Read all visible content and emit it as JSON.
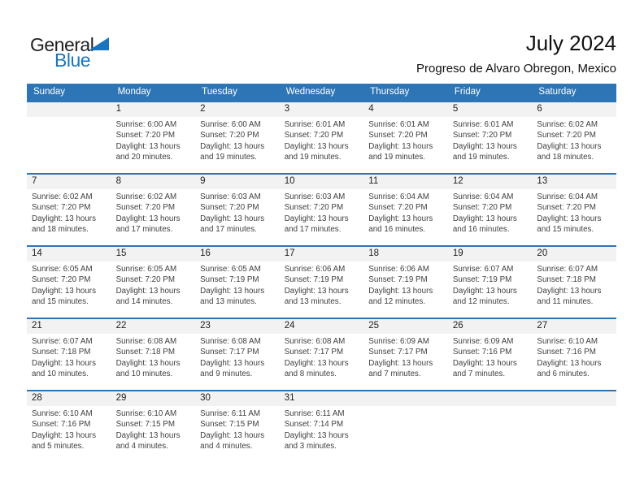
{
  "page": {
    "title": "July 2024",
    "subtitle": "Progreso de Alvaro Obregon, Mexico"
  },
  "logo": {
    "word1": "General",
    "word2": "Blue",
    "triangle_icon": "blue-right-triangle"
  },
  "colors": {
    "header_blue": "#2E75B6",
    "row_border_blue": "#2E74B5",
    "day_number_strip_gray": "#F2F2F2",
    "logo_blue": "#1B75BC",
    "logo_text_dark": "#1F1F1F",
    "detail_text": "#3F3F3F",
    "title_text": "#111111"
  },
  "calendar": {
    "weekday_headers": [
      "Sunday",
      "Monday",
      "Tuesday",
      "Wednesday",
      "Thursday",
      "Friday",
      "Saturday"
    ],
    "weeks": [
      [
        null,
        {
          "day": "1",
          "sunrise": "Sunrise: 6:00 AM",
          "sunset": "Sunset: 7:20 PM",
          "daylight1": "Daylight: 13 hours",
          "daylight2": "and 20 minutes."
        },
        {
          "day": "2",
          "sunrise": "Sunrise: 6:00 AM",
          "sunset": "Sunset: 7:20 PM",
          "daylight1": "Daylight: 13 hours",
          "daylight2": "and 19 minutes."
        },
        {
          "day": "3",
          "sunrise": "Sunrise: 6:01 AM",
          "sunset": "Sunset: 7:20 PM",
          "daylight1": "Daylight: 13 hours",
          "daylight2": "and 19 minutes."
        },
        {
          "day": "4",
          "sunrise": "Sunrise: 6:01 AM",
          "sunset": "Sunset: 7:20 PM",
          "daylight1": "Daylight: 13 hours",
          "daylight2": "and 19 minutes."
        },
        {
          "day": "5",
          "sunrise": "Sunrise: 6:01 AM",
          "sunset": "Sunset: 7:20 PM",
          "daylight1": "Daylight: 13 hours",
          "daylight2": "and 19 minutes."
        },
        {
          "day": "6",
          "sunrise": "Sunrise: 6:02 AM",
          "sunset": "Sunset: 7:20 PM",
          "daylight1": "Daylight: 13 hours",
          "daylight2": "and 18 minutes."
        }
      ],
      [
        {
          "day": "7",
          "sunrise": "Sunrise: 6:02 AM",
          "sunset": "Sunset: 7:20 PM",
          "daylight1": "Daylight: 13 hours",
          "daylight2": "and 18 minutes."
        },
        {
          "day": "8",
          "sunrise": "Sunrise: 6:02 AM",
          "sunset": "Sunset: 7:20 PM",
          "daylight1": "Daylight: 13 hours",
          "daylight2": "and 17 minutes."
        },
        {
          "day": "9",
          "sunrise": "Sunrise: 6:03 AM",
          "sunset": "Sunset: 7:20 PM",
          "daylight1": "Daylight: 13 hours",
          "daylight2": "and 17 minutes."
        },
        {
          "day": "10",
          "sunrise": "Sunrise: 6:03 AM",
          "sunset": "Sunset: 7:20 PM",
          "daylight1": "Daylight: 13 hours",
          "daylight2": "and 17 minutes."
        },
        {
          "day": "11",
          "sunrise": "Sunrise: 6:04 AM",
          "sunset": "Sunset: 7:20 PM",
          "daylight1": "Daylight: 13 hours",
          "daylight2": "and 16 minutes."
        },
        {
          "day": "12",
          "sunrise": "Sunrise: 6:04 AM",
          "sunset": "Sunset: 7:20 PM",
          "daylight1": "Daylight: 13 hours",
          "daylight2": "and 16 minutes."
        },
        {
          "day": "13",
          "sunrise": "Sunrise: 6:04 AM",
          "sunset": "Sunset: 7:20 PM",
          "daylight1": "Daylight: 13 hours",
          "daylight2": "and 15 minutes."
        }
      ],
      [
        {
          "day": "14",
          "sunrise": "Sunrise: 6:05 AM",
          "sunset": "Sunset: 7:20 PM",
          "daylight1": "Daylight: 13 hours",
          "daylight2": "and 15 minutes."
        },
        {
          "day": "15",
          "sunrise": "Sunrise: 6:05 AM",
          "sunset": "Sunset: 7:20 PM",
          "daylight1": "Daylight: 13 hours",
          "daylight2": "and 14 minutes."
        },
        {
          "day": "16",
          "sunrise": "Sunrise: 6:05 AM",
          "sunset": "Sunset: 7:19 PM",
          "daylight1": "Daylight: 13 hours",
          "daylight2": "and 13 minutes."
        },
        {
          "day": "17",
          "sunrise": "Sunrise: 6:06 AM",
          "sunset": "Sunset: 7:19 PM",
          "daylight1": "Daylight: 13 hours",
          "daylight2": "and 13 minutes."
        },
        {
          "day": "18",
          "sunrise": "Sunrise: 6:06 AM",
          "sunset": "Sunset: 7:19 PM",
          "daylight1": "Daylight: 13 hours",
          "daylight2": "and 12 minutes."
        },
        {
          "day": "19",
          "sunrise": "Sunrise: 6:07 AM",
          "sunset": "Sunset: 7:19 PM",
          "daylight1": "Daylight: 13 hours",
          "daylight2": "and 12 minutes."
        },
        {
          "day": "20",
          "sunrise": "Sunrise: 6:07 AM",
          "sunset": "Sunset: 7:18 PM",
          "daylight1": "Daylight: 13 hours",
          "daylight2": "and 11 minutes."
        }
      ],
      [
        {
          "day": "21",
          "sunrise": "Sunrise: 6:07 AM",
          "sunset": "Sunset: 7:18 PM",
          "daylight1": "Daylight: 13 hours",
          "daylight2": "and 10 minutes."
        },
        {
          "day": "22",
          "sunrise": "Sunrise: 6:08 AM",
          "sunset": "Sunset: 7:18 PM",
          "daylight1": "Daylight: 13 hours",
          "daylight2": "and 10 minutes."
        },
        {
          "day": "23",
          "sunrise": "Sunrise: 6:08 AM",
          "sunset": "Sunset: 7:17 PM",
          "daylight1": "Daylight: 13 hours",
          "daylight2": "and 9 minutes."
        },
        {
          "day": "24",
          "sunrise": "Sunrise: 6:08 AM",
          "sunset": "Sunset: 7:17 PM",
          "daylight1": "Daylight: 13 hours",
          "daylight2": "and 8 minutes."
        },
        {
          "day": "25",
          "sunrise": "Sunrise: 6:09 AM",
          "sunset": "Sunset: 7:17 PM",
          "daylight1": "Daylight: 13 hours",
          "daylight2": "and 7 minutes."
        },
        {
          "day": "26",
          "sunrise": "Sunrise: 6:09 AM",
          "sunset": "Sunset: 7:16 PM",
          "daylight1": "Daylight: 13 hours",
          "daylight2": "and 7 minutes."
        },
        {
          "day": "27",
          "sunrise": "Sunrise: 6:10 AM",
          "sunset": "Sunset: 7:16 PM",
          "daylight1": "Daylight: 13 hours",
          "daylight2": "and 6 minutes."
        }
      ],
      [
        {
          "day": "28",
          "sunrise": "Sunrise: 6:10 AM",
          "sunset": "Sunset: 7:16 PM",
          "daylight1": "Daylight: 13 hours",
          "daylight2": "and 5 minutes."
        },
        {
          "day": "29",
          "sunrise": "Sunrise: 6:10 AM",
          "sunset": "Sunset: 7:15 PM",
          "daylight1": "Daylight: 13 hours",
          "daylight2": "and 4 minutes."
        },
        {
          "day": "30",
          "sunrise": "Sunrise: 6:11 AM",
          "sunset": "Sunset: 7:15 PM",
          "daylight1": "Daylight: 13 hours",
          "daylight2": "and 4 minutes."
        },
        {
          "day": "31",
          "sunrise": "Sunrise: 6:11 AM",
          "sunset": "Sunset: 7:14 PM",
          "daylight1": "Daylight: 13 hours",
          "daylight2": "and 3 minutes."
        },
        null,
        null,
        null
      ]
    ]
  }
}
